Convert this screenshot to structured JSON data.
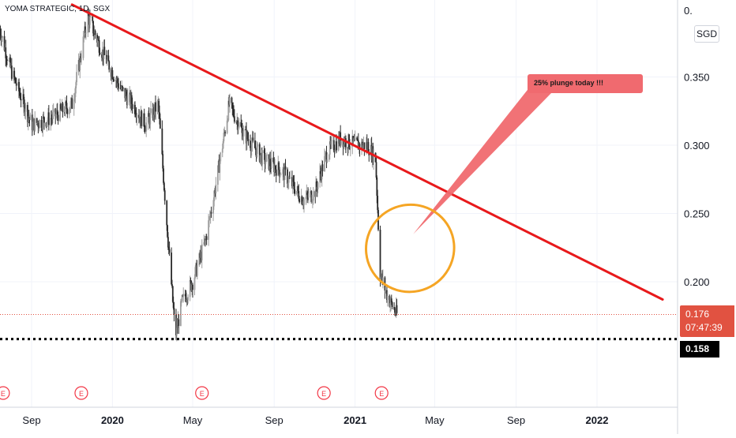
{
  "header": {
    "title": "YOMA STRATEGIC, 1D, SGX"
  },
  "axis": {
    "currency": "SGD",
    "top_tick_clipped": "0."
  },
  "price_tags": {
    "last_price": "0.176",
    "countdown": "07:47:39",
    "support_level": "0.158"
  },
  "annotation": {
    "text": "25% plunge today !!!"
  },
  "colors": {
    "candle_up": "#9e9e9e",
    "candle_down": "#2a2a2a",
    "trendline": "#e8191b",
    "highlight_ellipse": "#f5a524",
    "callout": "#f06a6f",
    "earnings_marker": "#f23645",
    "last_price": "#e15241",
    "support": "#000000"
  },
  "chart_data": {
    "type": "candlestick",
    "interval": "1D",
    "ylim": [
      0.1,
      0.4
    ],
    "y_ticks": [
      0.2,
      0.25,
      0.3,
      0.35
    ],
    "x_tick_labels": [
      "Sep",
      "2020",
      "May",
      "Sep",
      "2021",
      "May",
      "Sep",
      "2022"
    ],
    "x_tick_dates": [
      "2019-09-01",
      "2020-01-01",
      "2020-05-01",
      "2020-09-01",
      "2021-01-01",
      "2021-05-01",
      "2021-09-01",
      "2022-01-01"
    ],
    "xlim": [
      "2019-07-15",
      "2022-04-15"
    ],
    "approx_close_path": [
      {
        "date": "2019-07-15",
        "close": 0.385
      },
      {
        "date": "2019-08-01",
        "close": 0.355
      },
      {
        "date": "2019-09-01",
        "close": 0.315
      },
      {
        "date": "2019-10-01",
        "close": 0.32
      },
      {
        "date": "2019-11-01",
        "close": 0.33
      },
      {
        "date": "2019-11-25",
        "close": 0.395
      },
      {
        "date": "2019-12-15",
        "close": 0.37
      },
      {
        "date": "2020-01-15",
        "close": 0.34
      },
      {
        "date": "2020-02-01",
        "close": 0.33
      },
      {
        "date": "2020-02-20",
        "close": 0.315
      },
      {
        "date": "2020-03-10",
        "close": 0.33
      },
      {
        "date": "2020-03-25",
        "close": 0.23
      },
      {
        "date": "2020-04-05",
        "close": 0.16
      },
      {
        "date": "2020-04-15",
        "close": 0.185
      },
      {
        "date": "2020-05-01",
        "close": 0.2
      },
      {
        "date": "2020-05-20",
        "close": 0.23
      },
      {
        "date": "2020-06-01",
        "close": 0.26
      },
      {
        "date": "2020-06-15",
        "close": 0.3
      },
      {
        "date": "2020-06-25",
        "close": 0.33
      },
      {
        "date": "2020-07-15",
        "close": 0.31
      },
      {
        "date": "2020-08-15",
        "close": 0.29
      },
      {
        "date": "2020-09-15",
        "close": 0.28
      },
      {
        "date": "2020-10-15",
        "close": 0.26
      },
      {
        "date": "2020-11-01",
        "close": 0.265
      },
      {
        "date": "2020-11-20",
        "close": 0.295
      },
      {
        "date": "2020-12-10",
        "close": 0.305
      },
      {
        "date": "2021-01-01",
        "close": 0.3
      },
      {
        "date": "2021-01-20",
        "close": 0.3
      },
      {
        "date": "2021-02-01",
        "close": 0.29
      },
      {
        "date": "2021-02-08",
        "close": 0.205
      },
      {
        "date": "2021-02-20",
        "close": 0.188
      },
      {
        "date": "2021-03-05",
        "close": 0.176
      }
    ],
    "last_price": 0.176,
    "support_level": 0.158,
    "trendline": [
      {
        "date": "2019-11-01",
        "value": 0.403
      },
      {
        "date": "2022-04-10",
        "value": 0.187
      }
    ],
    "earnings_markers": {
      "label": "E",
      "dates": [
        "2019-07-20",
        "2019-11-15",
        "2020-05-15",
        "2020-11-15",
        "2021-02-10"
      ]
    },
    "highlight": {
      "center_date": "2021-03-25",
      "center_value": 0.243
    },
    "legend": "none",
    "grid": true
  }
}
